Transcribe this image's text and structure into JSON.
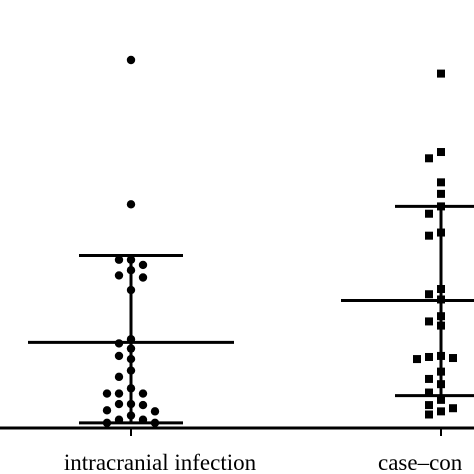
{
  "chart_data": {
    "type": "scatter",
    "subtype": "dot-plot-with-mean-and-sd",
    "categories": [
      "intracranial infection",
      "case–con"
    ],
    "ylim": [
      0,
      37
    ],
    "grid": false,
    "legend": "none",
    "colors": {
      "marks": "#000000",
      "background": "#ffffff"
    },
    "series": [
      {
        "marker": "circle",
        "mean": 8.0,
        "sd_low": 0.3,
        "sd_high": 16.3,
        "values": [
          35.0,
          21.2,
          15.9,
          15.9,
          15.4,
          14.9,
          14.4,
          14.2,
          13.0,
          8.3,
          7.9,
          7.4,
          6.7,
          6.4,
          5.3,
          4.7,
          3.6,
          3.1,
          3.1,
          3.1,
          2.1,
          2.1,
          2.0,
          1.5,
          1.4,
          1.0,
          0.6,
          0.6,
          0.3,
          0.3
        ]
      },
      {
        "marker": "square",
        "mean": 12.0,
        "sd_low": 2.9,
        "sd_high": 21.0,
        "values": [
          33.7,
          26.2,
          25.6,
          23.3,
          22.2,
          21.0,
          20.3,
          18.5,
          18.2,
          13.1,
          12.6,
          12.1,
          10.5,
          10.0,
          9.6,
          6.7,
          6.6,
          6.5,
          6.4,
          5.2,
          4.5,
          4.0,
          3.2,
          2.5,
          2.0,
          1.7,
          1.4,
          1.1
        ]
      }
    ]
  }
}
